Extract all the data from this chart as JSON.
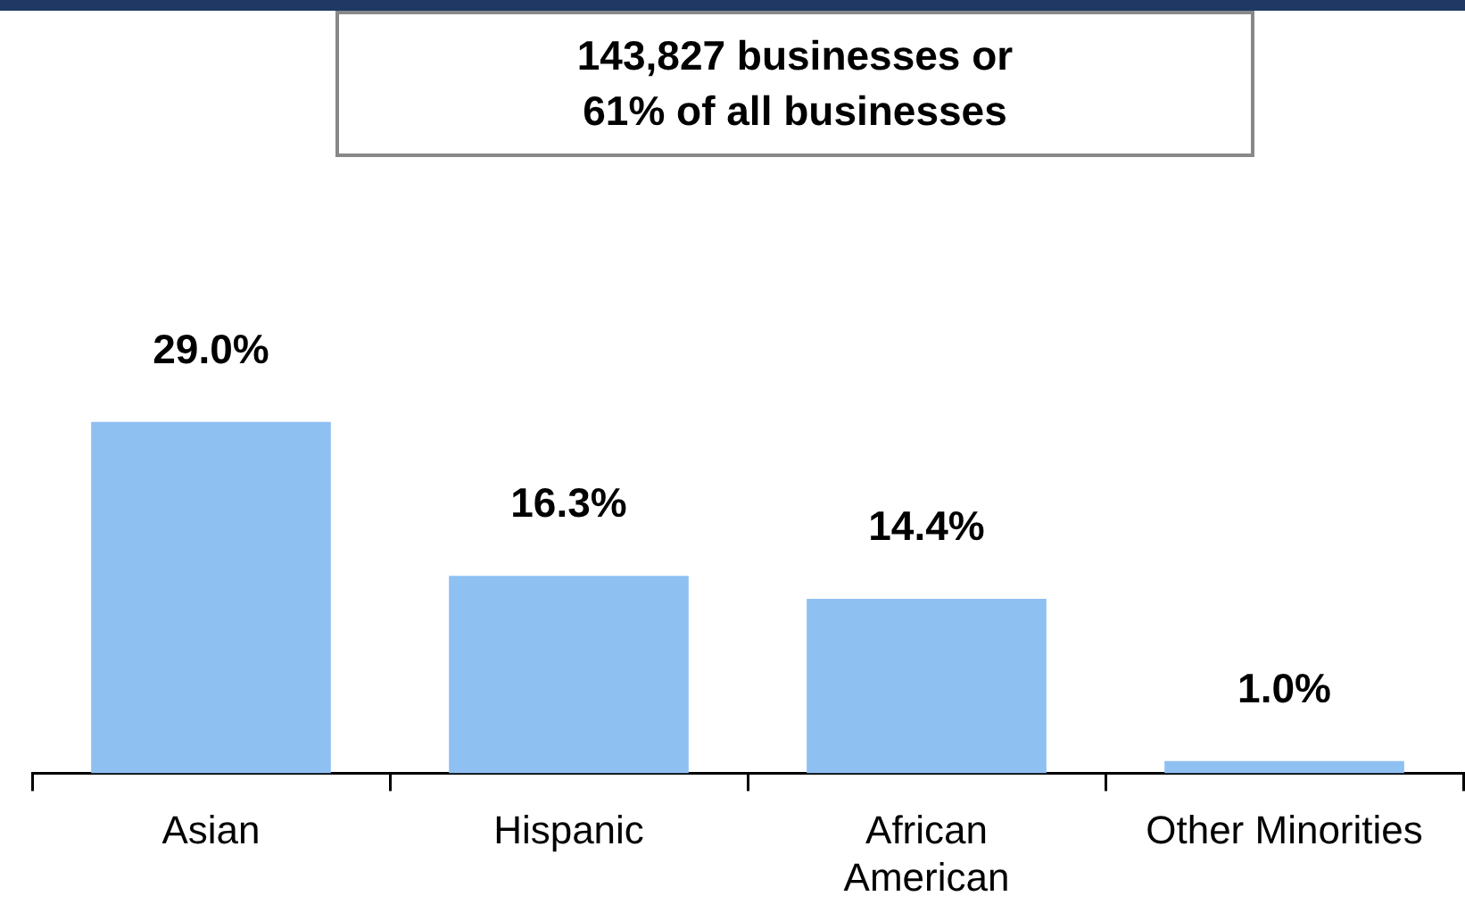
{
  "chart_data": {
    "type": "bar",
    "categories": [
      "Asian",
      "Hispanic",
      "African\nAmerican",
      "Other Minorities"
    ],
    "values": [
      29.0,
      16.3,
      14.4,
      1.0
    ],
    "value_labels": [
      "29.0%",
      "16.3%",
      "14.4%",
      "1.0%"
    ],
    "color": "#8fc0f2",
    "annotations": [
      "143,827 businesses or\n61% of all businesses"
    ],
    "grid": false,
    "legend": false
  }
}
